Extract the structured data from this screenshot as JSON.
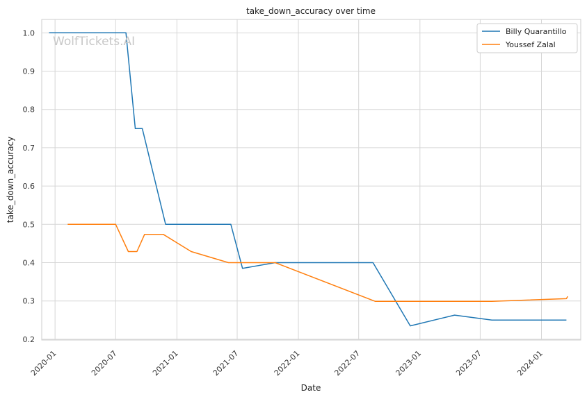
{
  "chart_data": {
    "type": "line",
    "title": "take_down_accuracy over time",
    "xlabel": "Date",
    "ylabel": "take_down_accuracy",
    "watermark": "WolfTickets.AI",
    "x_ticks": [
      "2020-01",
      "2020-07",
      "2021-01",
      "2021-07",
      "2022-01",
      "2022-07",
      "2023-01",
      "2023-07",
      "2024-01"
    ],
    "y_ticks": [
      "0.2",
      "0.3",
      "0.4",
      "0.5",
      "0.6",
      "0.7",
      "0.8",
      "0.9",
      "1.0"
    ],
    "xlim": [
      "2019-11-22",
      "2024-04-28"
    ],
    "ylim": [
      0.198,
      1.035
    ],
    "grid": true,
    "legend_position": "top-right",
    "series": [
      {
        "name": "Billy Quarantillo",
        "color": "#1f77b4",
        "points": [
          [
            "2019-12-14",
            1.0
          ],
          [
            "2020-08-01",
            1.0
          ],
          [
            "2020-08-29",
            0.75
          ],
          [
            "2020-09-19",
            0.75
          ],
          [
            "2020-11-28",
            0.5
          ],
          [
            "2021-06-12",
            0.5
          ],
          [
            "2021-07-17",
            0.385
          ],
          [
            "2021-10-23",
            0.4
          ],
          [
            "2022-08-13",
            0.4
          ],
          [
            "2022-12-03",
            0.235
          ],
          [
            "2023-04-15",
            0.263
          ],
          [
            "2023-08-05",
            0.25
          ],
          [
            "2024-03-16",
            0.25
          ]
        ]
      },
      {
        "name": "Youssef Zalal",
        "color": "#ff7f0e",
        "points": [
          [
            "2020-02-08",
            0.5
          ],
          [
            "2020-07-01",
            0.5
          ],
          [
            "2020-08-08",
            0.429
          ],
          [
            "2020-09-03",
            0.429
          ],
          [
            "2020-09-26",
            0.474
          ],
          [
            "2020-11-21",
            0.474
          ],
          [
            "2021-02-13",
            0.429
          ],
          [
            "2021-06-05",
            0.4
          ],
          [
            "2021-10-23",
            0.4
          ],
          [
            "2022-08-20",
            0.299
          ],
          [
            "2023-08-05",
            0.299
          ],
          [
            "2024-03-16",
            0.306
          ],
          [
            "2024-03-20",
            0.312
          ]
        ]
      }
    ]
  }
}
